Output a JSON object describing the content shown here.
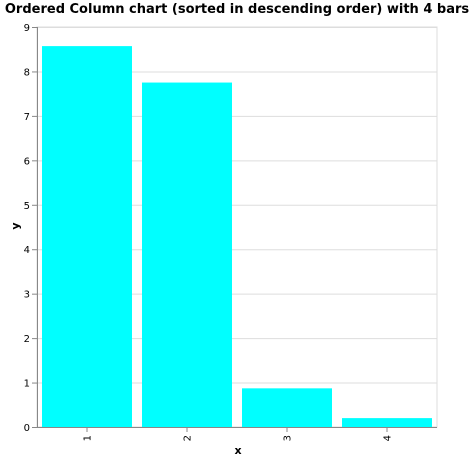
{
  "chart_data": {
    "type": "bar",
    "title": "Ordered Column chart (sorted in descending order) with 4 bars",
    "xlabel": "x",
    "ylabel": "y",
    "categories": [
      "1",
      "2",
      "3",
      "4"
    ],
    "values": [
      8.57,
      7.75,
      0.87,
      0.2
    ],
    "ylim": [
      0,
      9
    ],
    "yticks": [
      0,
      1,
      2,
      3,
      4,
      5,
      6,
      7,
      8,
      9
    ],
    "grid": true,
    "bar_color": "#00ffff"
  }
}
